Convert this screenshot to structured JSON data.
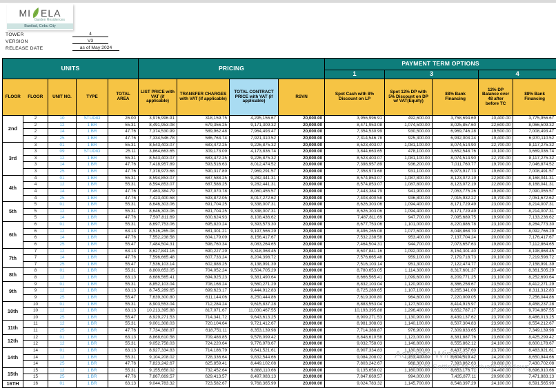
{
  "logo": {
    "brand_left": "MI",
    "brand_right": "ELA",
    "subtitle": "Garden Residences",
    "location": "Banilad, Cebu City",
    "leaf_color": "#7cb342"
  },
  "meta": [
    {
      "label": "TOWER",
      "value": "4"
    },
    {
      "label": "VERSION",
      "value": "V3"
    },
    {
      "label": "RELEASE DATE",
      "value": "as of May 2024"
    }
  ],
  "colors": {
    "teal_band": "#0e7d7b",
    "gold_header": "#f6c444",
    "blue_header": "#a9dcf2",
    "unit_text_blue": "#3f9edb"
  },
  "watermark": {
    "line1": "Activate Windows",
    "line2": "Go to Settings to activate Windows"
  },
  "table": {
    "headers": {
      "units": "UNITS",
      "pricing": "PRICING",
      "payment": "PAYMENT TERM OPTIONS",
      "opt1_num": "1",
      "opt3_num": "3",
      "opt4_num": "4",
      "floor1": "FLOOR",
      "floor2": "FLOOR",
      "unit_no": "UNIT NO.",
      "type": "TYPE",
      "total_area": "TOTAL AREA",
      "list_price": "LIST PRICE with VAT (if applicable)",
      "transfer": "TRANSFER CHARGES with VAT (if applicable)",
      "tcp": "TOTAL CONTRACT PRICE with VAT (if applicable)",
      "rsvn": "RSVN",
      "opt1_desc": "Spot Cash with 8% Discount on LP",
      "opt3_dp": "Spot 12% DP with 5% Discount on DP w/ VAT(Equity)",
      "opt3_bank": "88% Bank Financing",
      "opt4_dp": "12% DP Balance over 48 after before TC",
      "opt4_bank": "88% Bank Financing"
    },
    "floors": [
      {
        "label": "2nd",
        "rows": [
          [
            "2",
            "10",
            "STUDIO",
            "26.00",
            "3,976,996.91",
            "318,159.75",
            "4,295,156.67",
            "20,000.00",
            "3,956,996.91",
            "492,600.00",
            "3,758,694.69",
            "10,400.00",
            "3,775,956.67"
          ],
          [
            "2",
            "12",
            "1 BR",
            "55.31",
            "8,491,953.08",
            "679,356.25",
            "9,171,309.32",
            "20,000.00",
            "8,471,953.08",
            "1,074,500.00",
            "8,025,857.60",
            "22,600.00",
            "8,066,509.32"
          ],
          [
            "2",
            "14",
            "1 BR",
            "47.76",
            "7,374,530.99",
            "589,962.48",
            "7,964,493.47",
            "20,000.00",
            "7,354,530.99",
            "930,500.00",
            "6,969,746.28",
            "19,500.00",
            "7,008,493.47"
          ],
          [
            "2",
            "25",
            "1 BR",
            "47.76",
            "7,334,546.78",
            "586,763.74",
            "7,921,310.52",
            "20,000.00",
            "7,314,546.78",
            "925,300.00",
            "6,932,003.24",
            "19,400.00",
            "6,970,110.52"
          ]
        ]
      },
      {
        "label": "3rd",
        "rows": [
          [
            "3",
            "01",
            "1 BR",
            "55.31",
            "8,543,403.07",
            "683,472.25",
            "9,226,875.32",
            "20,000.00",
            "8,523,403.07",
            "1,081,100.00",
            "8,074,514.90",
            "22,700.00",
            "8,117,275.32"
          ],
          [
            "3",
            "09",
            "STUDIO",
            "25.11",
            "3,864,663.65",
            "309,173.09",
            "4,173,836.74",
            "20,000.00",
            "3,844,663.65",
            "478,100.00",
            "3,652,548.76",
            "10,100.00",
            "3,669,036.74"
          ],
          [
            "3",
            "12",
            "1 BR",
            "55.31",
            "8,543,403.07",
            "683,472.25",
            "9,226,875.32",
            "20,000.00",
            "8,523,403.07",
            "1,081,100.00",
            "8,074,514.90",
            "22,700.00",
            "8,117,275.32"
          ],
          [
            "3",
            "14",
            "1 BR",
            "47.76",
            "7,418,957.89",
            "593,516.63",
            "8,012,474.52",
            "20,000.00",
            "7,398,957.89",
            "936,200.00",
            "7,011,760.77",
            "19,700.00",
            "7,046,874.52"
          ],
          [
            "3",
            "25",
            "1 BR",
            "47.76",
            "7,378,973.68",
            "590,317.89",
            "7,969,291.57",
            "20,000.00",
            "7,358,973.68",
            "931,100.00",
            "6,973,917.73",
            "19,600.00",
            "7,008,491.57"
          ]
        ]
      },
      {
        "label": "4th",
        "rows": [
          [
            "4",
            "01",
            "1 BR",
            "55.31",
            "8,594,853.07",
            "687,588.25",
            "9,282,441.31",
            "20,000.00",
            "8,574,853.07",
            "1,087,800.00",
            "8,123,072.19",
            "22,800.00",
            "8,168,041.31"
          ],
          [
            "4",
            "12",
            "1 BR",
            "55.31",
            "8,594,853.07",
            "687,588.25",
            "9,282,441.31",
            "20,000.00",
            "8,574,853.07",
            "1,087,800.00",
            "8,123,072.19",
            "22,800.00",
            "8,168,041.31"
          ],
          [
            "4",
            "14",
            "1 BR",
            "47.76",
            "7,463,384.79",
            "597,070.78",
            "8,060,455.57",
            "20,000.00",
            "7,443,384.79",
            "941,900.00",
            "7,053,775.26",
            "19,800.00",
            "7,090,055.57"
          ],
          [
            "4",
            "25",
            "1 BR",
            "47.76",
            "7,423,400.58",
            "593,872.05",
            "8,017,272.62",
            "20,000.00",
            "7,403,400.58",
            "936,800.00",
            "7,015,932.22",
            "19,700.00",
            "7,051,672.62"
          ]
        ]
      },
      {
        "label": "5th",
        "rows": [
          [
            "5",
            "01",
            "1 BR",
            "55.31",
            "8,646,303.06",
            "691,704.25",
            "9,338,007.31",
            "20,000.00",
            "8,626,303.06",
            "1,094,400.00",
            "8,171,729.49",
            "23,000.00",
            "8,214,007.31"
          ],
          [
            "5",
            "12",
            "1 BR",
            "55.31",
            "8,646,303.06",
            "691,704.25",
            "9,338,007.31",
            "20,000.00",
            "8,626,303.06",
            "1,094,400.00",
            "8,171,729.49",
            "23,000.00",
            "8,214,007.31"
          ],
          [
            "5",
            "14",
            "1 BR",
            "47.76",
            "7,507,811.69",
            "600,624.93",
            "8,108,436.62",
            "20,000.00",
            "7,487,811.69",
            "947,700.00",
            "7,095,689.75",
            "19,900.00",
            "7,133,236.62"
          ]
        ]
      },
      {
        "label": "6th",
        "rows": [
          [
            "6",
            "01",
            "1 BR",
            "55.31",
            "8,697,753.06",
            "695,820.24",
            "9,393,573.30",
            "20,000.00",
            "8,677,753.06",
            "1,101,000.00",
            "8,220,886.78",
            "23,100.00",
            "8,264,773.30"
          ],
          [
            "6",
            "12",
            "1 BR",
            "63.13",
            "8,516,265.08",
            "681,301.21",
            "9,197,566.29",
            "20,000.00",
            "8,496,265.08",
            "1,077,600.00",
            "8,048,868.70",
            "22,600.00",
            "8,092,766.29"
          ],
          [
            "6",
            "14",
            "1 BR",
            "47.76",
            "7,552,238.58",
            "604,179.09",
            "8,156,417.67",
            "20,000.00",
            "7,532,238.58",
            "953,400.00",
            "7,137,704.24",
            "20,000.00",
            "7,176,417.67"
          ],
          [
            "6",
            "25",
            "1 BR",
            "55.47",
            "7,484,504.31",
            "598,760.34",
            "8,083,264.65",
            "20,000.00",
            "7,464,504.31",
            "944,700.00",
            "7,073,657.63",
            "19,800.00",
            "7,112,864.65"
          ]
        ]
      },
      {
        "label": "7th",
        "rows": [
          [
            "7",
            "12",
            "1 BR",
            "63.13",
            "8,627,841.16",
            "690,227.29",
            "9,318,068.45",
            "20,000.00",
            "8,607,841.16",
            "1,092,000.00",
            "8,154,301.40",
            "22,900.00",
            "8,198,868.45"
          ],
          [
            "7",
            "14",
            "1 BR",
            "47.76",
            "7,596,665.48",
            "607,733.24",
            "8,204,398.72",
            "20,000.00",
            "7,576,665.48",
            "959,100.00",
            "7,179,718.73",
            "20,100.00",
            "7,219,598.72"
          ],
          [
            "7",
            "25",
            "1 BR",
            "55.47",
            "7,536,103.14",
            "602,888.25",
            "8,138,991.39",
            "20,000.00",
            "7,516,103.14",
            "951,300.00",
            "7,122,474.77",
            "20,000.00",
            "7,158,991.39"
          ]
        ]
      },
      {
        "label": "8th",
        "rows": [
          [
            "8",
            "01",
            "1 BR",
            "55.31",
            "8,800,653.05",
            "704,052.24",
            "9,504,705.29",
            "20,000.00",
            "8,780,653.05",
            "1,114,300.00",
            "8,317,601.37",
            "23,400.00",
            "8,361,505.29"
          ],
          [
            "8",
            "12",
            "1 BR",
            "63.13",
            "8,686,565.41",
            "694,925.23",
            "9,381,490.64",
            "20,000.00",
            "8,666,565.41",
            "1,099,600.00",
            "8,209,771.25",
            "23,100.00",
            "8,252,690.64"
          ]
        ]
      },
      {
        "label": "9th",
        "rows": [
          [
            "9",
            "01",
            "1 BR",
            "55.31",
            "8,852,103.04",
            "708,168.24",
            "9,560,271.29",
            "20,000.00",
            "8,832,103.04",
            "1,120,900.00",
            "8,366,258.67",
            "23,500.00",
            "8,412,271.29"
          ],
          [
            "9",
            "12",
            "1 BR",
            "63.13",
            "8,745,289.65",
            "699,623.17",
            "9,444,912.83",
            "20,000.00",
            "8,725,289.65",
            "1,107,100.00",
            "8,265,341.09",
            "23,200.00",
            "8,311,312.83"
          ],
          [
            "9",
            "25",
            "1 BR",
            "55.47",
            "7,639,300.80",
            "611,144.06",
            "8,250,444.86",
            "20,000.00",
            "7,619,300.80",
            "964,600.00",
            "7,220,009.05",
            "20,300.00",
            "7,256,044.86"
          ]
        ]
      },
      {
        "label": "10th",
        "rows": [
          [
            "10",
            "01",
            "1 BR",
            "55.31",
            "8,903,553.04",
            "712,284.24",
            "9,615,837.28",
            "20,000.00",
            "8,883,553.04",
            "1,127,500.00",
            "8,414,915.97",
            "23,700.00",
            "8,458,237.28"
          ],
          [
            "10",
            "12",
            "1 BR",
            "63.13",
            "10,213,395.88",
            "817,071.67",
            "11,030,467.55",
            "20,000.00",
            "10,193,395.88",
            "1,296,400.00",
            "9,652,787.17",
            "27,200.00",
            "9,704,867.55"
          ],
          [
            "10",
            "25",
            "1 BR",
            "55.47",
            "8,929,271.53",
            "714,341.72",
            "9,643,613.25",
            "20,000.00",
            "8,909,271.53",
            "1,130,900.00",
            "8,439,137.62",
            "23,700.00",
            "8,486,013.25"
          ]
        ]
      },
      {
        "label": "11th",
        "rows": [
          [
            "11",
            "12",
            "1 BR",
            "55.31",
            "9,001,308.03",
            "720,104.64",
            "9,721,412.67",
            "20,000.00",
            "8,981,308.03",
            "1,140,100.00",
            "8,507,304.83",
            "23,900.00",
            "8,554,212.67"
          ],
          [
            "11",
            "25",
            "1 BR",
            "47.76",
            "7,734,388.87",
            "618,751.11",
            "8,353,139.98",
            "20,000.00",
            "7,714,388.87",
            "976,900.00",
            "7,309,833.65",
            "20,500.00",
            "7,349,139.98"
          ]
        ]
      },
      {
        "label": "12th",
        "rows": [
          [
            "12",
            "01",
            "1 BR",
            "63.13",
            "8,868,610.58",
            "709,488.85",
            "9,578,099.42",
            "20,000.00",
            "8,848,610.58",
            "1,123,000.00",
            "8,381,887.76",
            "23,600.00",
            "8,425,299.42"
          ],
          [
            "12",
            "12",
            "1 BR",
            "55.31",
            "9,052,758.03",
            "724,220.64",
            "9,776,978.67",
            "20,000.00",
            "9,032,758.03",
            "1,146,800.00",
            "8,555,862.12",
            "24,100.00",
            "8,600,178.67"
          ]
        ]
      },
      {
        "label": "14th",
        "rows": [
          [
            "14",
            "01",
            "1 BR",
            "63.13",
            "8,927,334.83",
            "714,186.79",
            "9,641,521.61",
            "20,000.00",
            "8,907,334.83",
            "1,130,600.00",
            "8,437,357.60",
            "23,700.00",
            "8,483,921.61"
          ],
          [
            "14",
            "12",
            "1 BR",
            "55.31",
            "9,104,208.02",
            "728,336.64",
            "9,832,544.66",
            "20,000.00",
            "9,084,208.02",
            "1,153,400.00",
            "8,604,519.42",
            "24,200.00",
            "8,650,944.66"
          ],
          [
            "14",
            "25",
            "1 BR",
            "47.76",
            "7,823,242.67",
            "625,859.41",
            "8,449,102.08",
            "20,000.00",
            "7,803,242.67",
            "988,300.00",
            "7,393,862.63",
            "20,800.00",
            "7,430,702.08"
          ]
        ]
      },
      {
        "label": "15th",
        "rows": [
          [
            "15",
            "12",
            "1 BR",
            "55.31",
            "9,155,658.02",
            "732,452.64",
            "9,888,110.66",
            "20,000.00",
            "9,135,658.02",
            "1,160,000.00",
            "8,653,176.71",
            "24,400.00",
            "8,696,910.66"
          ],
          [
            "15",
            "25",
            "1 BR",
            "47.76",
            "7,867,669.57",
            "629,413.57",
            "8,497,083.13",
            "20,000.00",
            "7,847,669.57",
            "994,000.00",
            "7,435,877.11",
            "20,900.00",
            "7,471,883.13"
          ]
        ]
      },
      {
        "label": "16TH",
        "rows": [
          [
            "16",
            "01",
            "1 BR",
            "63.13",
            "9,044,783.32",
            "723,582.67",
            "9,768,365.99",
            "20,000.00",
            "9,024,783.32",
            "1,145,700.00",
            "8,548,397.29",
            "24,100.00",
            "8,591,565.99"
          ]
        ]
      }
    ]
  }
}
